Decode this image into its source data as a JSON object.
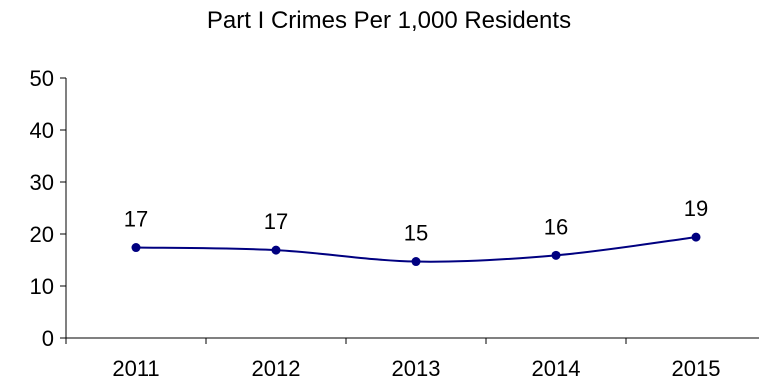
{
  "chart_data": {
    "type": "line",
    "title": "Part I Crimes Per 1,000 Residents",
    "xlabel": "",
    "ylabel": "",
    "categories": [
      "2011",
      "2012",
      "2013",
      "2014",
      "2015"
    ],
    "series": [
      {
        "values": [
          17.4,
          16.9,
          14.7,
          15.9,
          19.4
        ],
        "data_labels": [
          "17",
          "17",
          "15",
          "16",
          "19"
        ],
        "color": "#000080"
      }
    ],
    "y_ticks": [
      "0",
      "10",
      "20",
      "30",
      "40",
      "50"
    ],
    "ylim": [
      0,
      50
    ],
    "grid": false,
    "legend": "none",
    "smooth": true
  }
}
